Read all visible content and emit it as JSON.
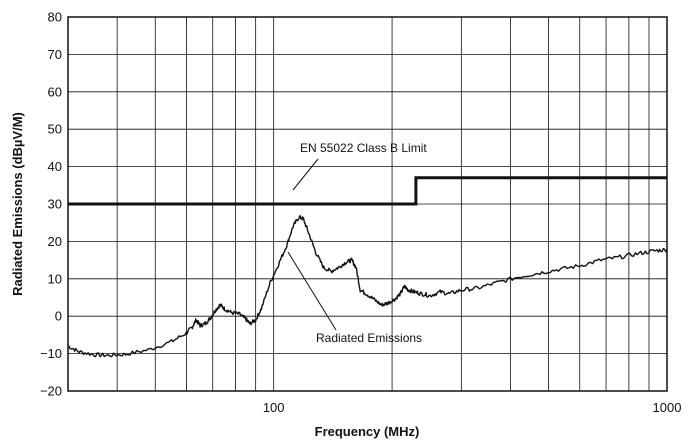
{
  "chart_data": {
    "type": "line",
    "title": "",
    "xlabel": "Frequency (MHz)",
    "ylabel": "Radiated Emissions (dBµV/M)",
    "x_scale": "log",
    "xlim": [
      30,
      1000
    ],
    "ylim": [
      -20,
      80
    ],
    "grid": true,
    "y_ticks": [
      "−20",
      "−10",
      "0",
      "10",
      "20",
      "30",
      "40",
      "50",
      "60",
      "70",
      "80"
    ],
    "x_tick_labels": [
      {
        "value": 100,
        "label": "100"
      },
      {
        "value": 1000,
        "label": "1000"
      }
    ],
    "annotations": [
      {
        "text": "EN 55022 Class B Limit",
        "points_to_series": "limit"
      },
      {
        "text": "Radiated Emissions",
        "points_to_series": "emissions"
      }
    ],
    "series": [
      {
        "id": "limit",
        "style": "step",
        "color": "#111111",
        "points": [
          [
            30,
            30
          ],
          [
            230,
            30
          ],
          [
            230,
            37
          ],
          [
            1000,
            37
          ]
        ]
      },
      {
        "id": "emissions",
        "style": "noisy",
        "color": "#111111",
        "points": [
          [
            30,
            -8
          ],
          [
            32,
            -9.5
          ],
          [
            35,
            -10.3
          ],
          [
            38,
            -10.5
          ],
          [
            42,
            -10.2
          ],
          [
            48,
            -9
          ],
          [
            55,
            -6.8
          ],
          [
            60,
            -4.5
          ],
          [
            62,
            -3
          ],
          [
            63.5,
            -1
          ],
          [
            65,
            -2.5
          ],
          [
            67,
            -2
          ],
          [
            69,
            -0.5
          ],
          [
            71,
            1.5
          ],
          [
            73,
            3
          ],
          [
            75,
            2
          ],
          [
            78,
            1
          ],
          [
            82,
            0.5
          ],
          [
            85,
            -0.8
          ],
          [
            87,
            -2
          ],
          [
            90,
            -1
          ],
          [
            93,
            2
          ],
          [
            98,
            9
          ],
          [
            103,
            14
          ],
          [
            108,
            19
          ],
          [
            112,
            24
          ],
          [
            116,
            26.5
          ],
          [
            119,
            26
          ],
          [
            123,
            22
          ],
          [
            128,
            17
          ],
          [
            134,
            13
          ],
          [
            140,
            12
          ],
          [
            146,
            13
          ],
          [
            153,
            14.5
          ],
          [
            158,
            15
          ],
          [
            162,
            13
          ],
          [
            166,
            7
          ],
          [
            172,
            6
          ],
          [
            180,
            4.5
          ],
          [
            188,
            3
          ],
          [
            195,
            3.5
          ],
          [
            203,
            4.5
          ],
          [
            210,
            6
          ],
          [
            215,
            8
          ],
          [
            220,
            7
          ],
          [
            228,
            6.5
          ],
          [
            238,
            6
          ],
          [
            250,
            5.5
          ],
          [
            265,
            6.5
          ],
          [
            280,
            6
          ],
          [
            300,
            7
          ],
          [
            330,
            7.5
          ],
          [
            370,
            9
          ],
          [
            420,
            10.5
          ],
          [
            470,
            11.5
          ],
          [
            530,
            12.5
          ],
          [
            600,
            13.5
          ],
          [
            680,
            15
          ],
          [
            760,
            15.8
          ],
          [
            850,
            16.8
          ],
          [
            930,
            17.5
          ],
          [
            1000,
            17.8
          ]
        ]
      }
    ]
  }
}
